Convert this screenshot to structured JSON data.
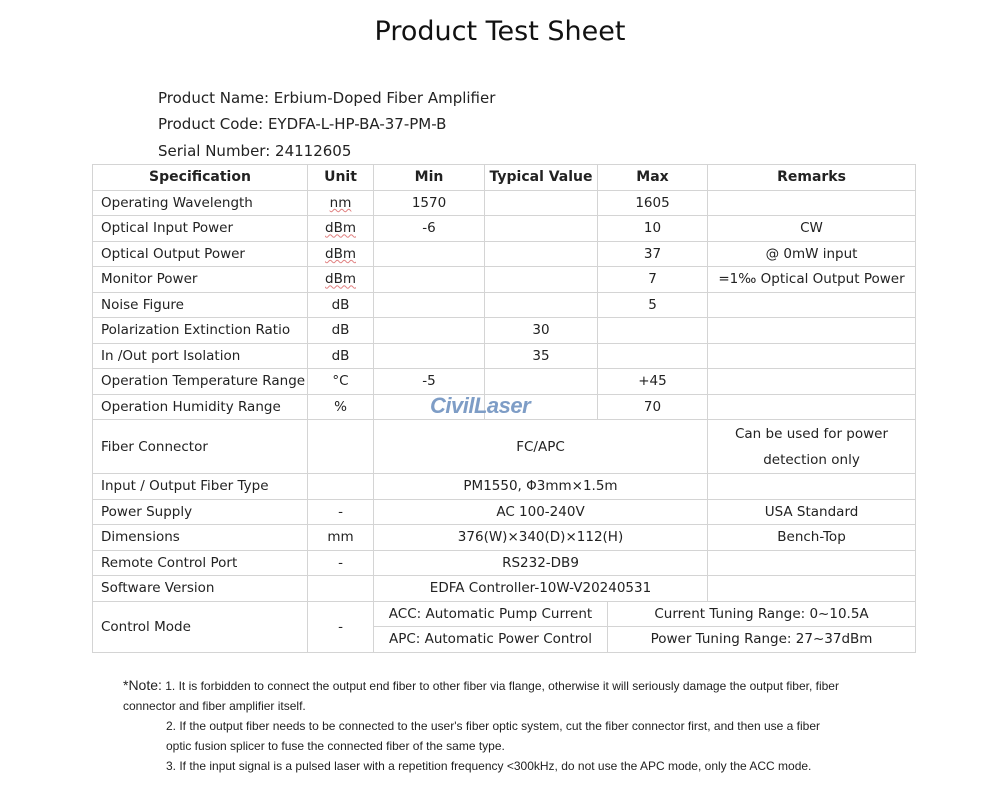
{
  "title": "Product Test Sheet",
  "info": {
    "name": "Product Name: Erbium-Doped Fiber Amplifier",
    "code": "Product Code: EYDFA-L-HP-BA-37-PM-B",
    "serial": "Serial Number: 24112605"
  },
  "headers": [
    "Specification",
    "Unit",
    "Min",
    "Typical Value",
    "Max",
    "Remarks"
  ],
  "rows": [
    [
      "Operating Wavelength",
      "nm",
      "1570",
      "",
      "1605",
      ""
    ],
    [
      "Optical Input Power",
      "dBm",
      "-6",
      "",
      "10",
      "CW"
    ],
    [
      "Optical Output Power",
      "dBm",
      "",
      "",
      "37",
      "@ 0mW input"
    ],
    [
      "Monitor Power",
      "dBm",
      "",
      "",
      "7",
      "=1‰  Optical Output Power"
    ],
    [
      "Noise Figure",
      "dB",
      "",
      "",
      "5",
      ""
    ],
    [
      "Polarization Extinction Ratio",
      "dB",
      "",
      "30",
      "",
      ""
    ],
    [
      "In /Out port Isolation",
      "dB",
      "",
      "35",
      "",
      ""
    ],
    [
      "Operation Temperature Range",
      "°C",
      "-5",
      "",
      "+45",
      ""
    ],
    [
      "Operation Humidity Range",
      "%",
      "",
      "",
      "70",
      ""
    ]
  ],
  "span_rows": [
    [
      "Fiber Connector",
      "",
      "FC/APC",
      "Can be used for power detection only"
    ],
    [
      "Input / Output Fiber Type",
      "",
      "PM1550,  Φ3mm×1.5m",
      ""
    ],
    [
      "Power Supply",
      "-",
      "AC 100-240V",
      "USA Standard"
    ],
    [
      "Dimensions",
      "mm",
      "376(W)×340(D)×112(H)",
      "Bench-Top"
    ],
    [
      "Remote Control Port",
      "-",
      "RS232-DB9",
      ""
    ],
    [
      "Software Version",
      "",
      "EDFA Controller-10W-V20240531",
      ""
    ]
  ],
  "control": {
    "label": "Control Mode",
    "unit": "-",
    "acc": "ACC: Automatic Pump Current",
    "acc_range": "Current Tuning Range: 0~10.5A",
    "apc": "APC: Automatic Power Control",
    "apc_range": "Power Tuning Range: 27~37dBm"
  },
  "watermark": "CivilLaser",
  "notes": {
    "prefix": "*Note:",
    "n1": " 1. It is forbidden to connect the output end fiber to other fiber via flange, otherwise it will seriously damage the output fiber, fiber connector and fiber amplifier itself.",
    "n2": "2.  If the output fiber needs to be connected to the user's fiber optic system, cut the fiber connector first, and then use a fiber optic fusion splicer to fuse the connected fiber of the same type.",
    "n3": "3.  If the input signal is a pulsed laser with a repetition frequency <300kHz, do not use the APC mode, only the ACC mode."
  }
}
